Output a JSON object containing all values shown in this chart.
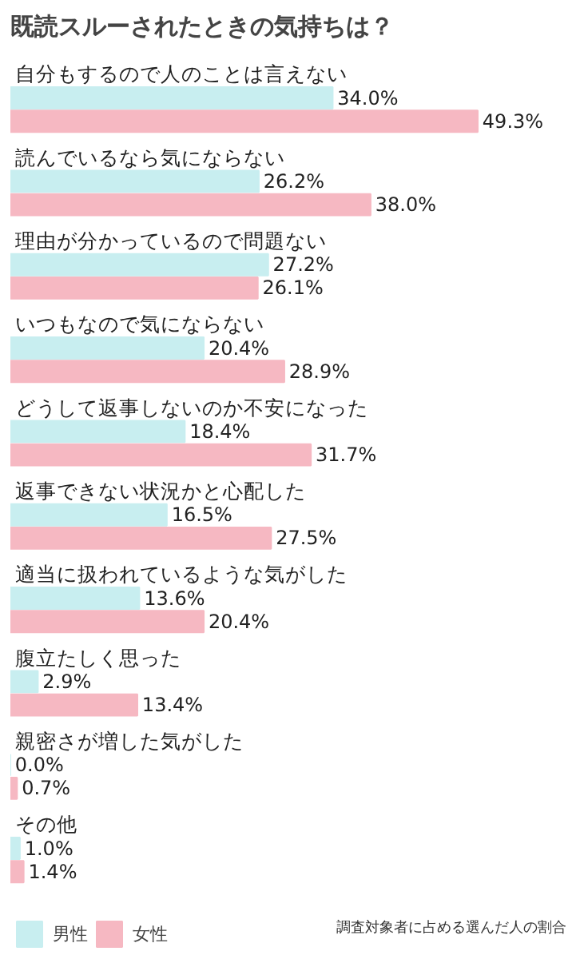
{
  "chart_data": {
    "type": "bar",
    "orientation": "horizontal",
    "title": "既読スルーされたときの気持ちは？",
    "categories": [
      "自分もするので人のことは言えない",
      "読んでいるなら気にならない",
      "理由が分かっているので問題ない",
      "いつもなので気にならない",
      "どうして返事しないのか不安になった",
      "返事できない状況かと心配した",
      "適当に扱われているような気がした",
      "腹立たしく思った",
      "親密さが増した気がした",
      "その他"
    ],
    "series": [
      {
        "name": "男性",
        "color": "#c8eef0",
        "values": [
          34.0,
          26.2,
          27.2,
          20.4,
          18.4,
          16.5,
          13.6,
          2.9,
          0.0,
          1.0
        ],
        "value_labels": [
          "34.0%",
          "26.2%",
          "27.2%",
          "20.4%",
          "18.4%",
          "16.5%",
          "13.6%",
          "2.9%",
          "0.0%",
          "1.0%"
        ]
      },
      {
        "name": "女性",
        "color": "#f6b8c2",
        "values": [
          49.3,
          38.0,
          26.1,
          28.9,
          31.7,
          27.5,
          20.4,
          13.4,
          0.7,
          1.4
        ],
        "value_labels": [
          "49.3%",
          "38.0%",
          "26.1%",
          "28.9%",
          "31.7%",
          "27.5%",
          "20.4%",
          "13.4%",
          "0.7%",
          "1.4%"
        ]
      }
    ],
    "legend": "bottom left",
    "grid": false,
    "annotations": [
      "調査対象者に占める選んだ人の割合"
    ]
  }
}
